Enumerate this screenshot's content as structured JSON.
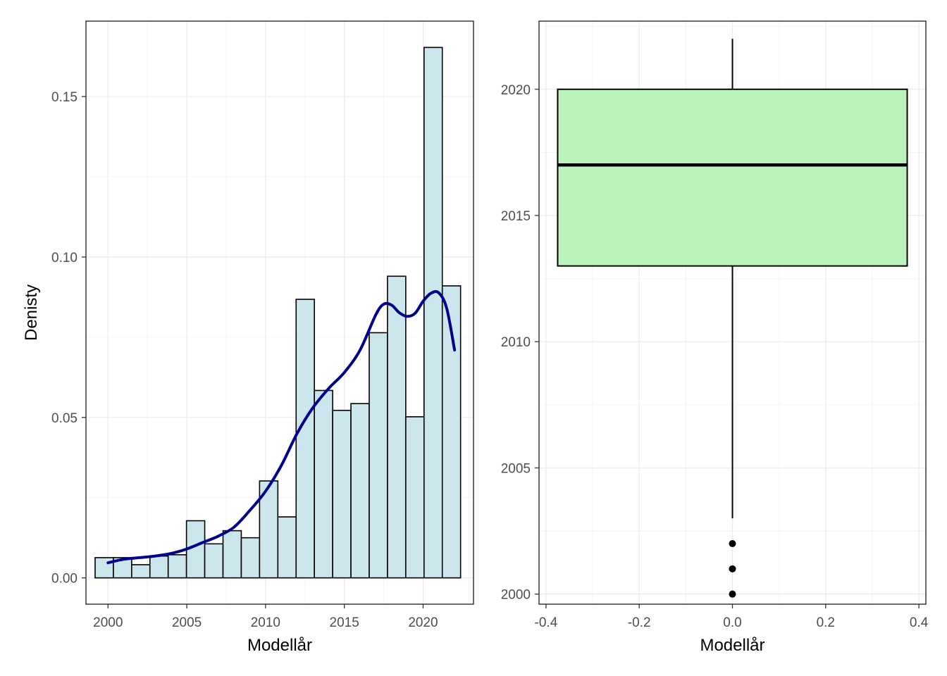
{
  "chart_data": [
    {
      "type": "histogram",
      "xlabel": "Modellår",
      "ylabel": "Denisty",
      "xlim": [
        1998.6,
        2023.2
      ],
      "ylim": [
        -0.0082,
        0.1735
      ],
      "x_ticks": [
        2000,
        2005,
        2010,
        2015,
        2020
      ],
      "x_tick_labels": [
        "2000",
        "2005",
        "2010",
        "2015",
        "2020"
      ],
      "y_ticks": [
        0.0,
        0.05,
        0.1,
        0.15
      ],
      "y_tick_labels": [
        "0.00",
        "0.05",
        "0.10",
        "0.15"
      ],
      "grid": true,
      "bar_fill": "#cce6ed",
      "bar_edge": "#000000",
      "bins": [
        {
          "x0": 1999.18,
          "x1": 2000.34,
          "value": 0.0063
        },
        {
          "x0": 2000.34,
          "x1": 2001.5,
          "value": 0.0063
        },
        {
          "x0": 2001.5,
          "x1": 2002.66,
          "value": 0.0041
        },
        {
          "x0": 2002.66,
          "x1": 2003.82,
          "value": 0.0068
        },
        {
          "x0": 2003.82,
          "x1": 2004.98,
          "value": 0.0072
        },
        {
          "x0": 2004.98,
          "x1": 2006.14,
          "value": 0.0178
        },
        {
          "x0": 2006.14,
          "x1": 2007.3,
          "value": 0.0106
        },
        {
          "x0": 2007.3,
          "x1": 2008.46,
          "value": 0.0147
        },
        {
          "x0": 2008.46,
          "x1": 2009.62,
          "value": 0.0125
        },
        {
          "x0": 2009.62,
          "x1": 2010.78,
          "value": 0.0302
        },
        {
          "x0": 2010.78,
          "x1": 2011.94,
          "value": 0.019
        },
        {
          "x0": 2011.94,
          "x1": 2013.1,
          "value": 0.0868
        },
        {
          "x0": 2013.1,
          "x1": 2014.26,
          "value": 0.0584
        },
        {
          "x0": 2014.26,
          "x1": 2015.42,
          "value": 0.0522
        },
        {
          "x0": 2015.42,
          "x1": 2016.58,
          "value": 0.0543
        },
        {
          "x0": 2016.58,
          "x1": 2017.74,
          "value": 0.0764
        },
        {
          "x0": 2017.74,
          "x1": 2018.9,
          "value": 0.094
        },
        {
          "x0": 2018.9,
          "x1": 2020.06,
          "value": 0.0502
        },
        {
          "x0": 2020.06,
          "x1": 2021.22,
          "value": 0.1653
        },
        {
          "x0": 2021.22,
          "x1": 2022.38,
          "value": 0.091
        }
      ],
      "density_color": "#00008b",
      "density": {
        "x": [
          2000,
          2001,
          2002,
          2003,
          2004,
          2005,
          2006,
          2007,
          2008,
          2009,
          2010,
          2011,
          2012,
          2013,
          2014,
          2015,
          2016,
          2017,
          2017.5,
          2018,
          2018.5,
          2019,
          2019.5,
          2020,
          2020.5,
          2021,
          2021.5,
          2022
        ],
        "y": [
          0.0047,
          0.0058,
          0.0063,
          0.0068,
          0.0076,
          0.009,
          0.011,
          0.013,
          0.0158,
          0.021,
          0.027,
          0.035,
          0.045,
          0.053,
          0.059,
          0.064,
          0.071,
          0.082,
          0.0853,
          0.085,
          0.0826,
          0.0815,
          0.0825,
          0.0862,
          0.0887,
          0.0888,
          0.084,
          0.071
        ]
      }
    },
    {
      "type": "boxplot",
      "xlabel": "Modellår",
      "xlim": [
        -0.415,
        0.415
      ],
      "ylim": [
        1999.6,
        2022.7
      ],
      "x_ticks": [
        -0.4,
        -0.2,
        0.0,
        0.2,
        0.4
      ],
      "x_tick_labels": [
        "-0.4",
        "-0.2",
        "0.0",
        "0.2",
        "0.4"
      ],
      "y_ticks": [
        2000,
        2005,
        2010,
        2015,
        2020
      ],
      "y_tick_labels": [
        "2000",
        "2005",
        "2010",
        "2015",
        "2020"
      ],
      "grid": true,
      "box_fill": "#bbf5bb",
      "box": {
        "x_center": 0.0,
        "width": 0.75,
        "lower_whisker": 2003,
        "q1": 2013,
        "median": 2017,
        "q3": 2020,
        "upper_whisker": 2022
      },
      "outliers": [
        2000,
        2001,
        2002
      ]
    }
  ]
}
